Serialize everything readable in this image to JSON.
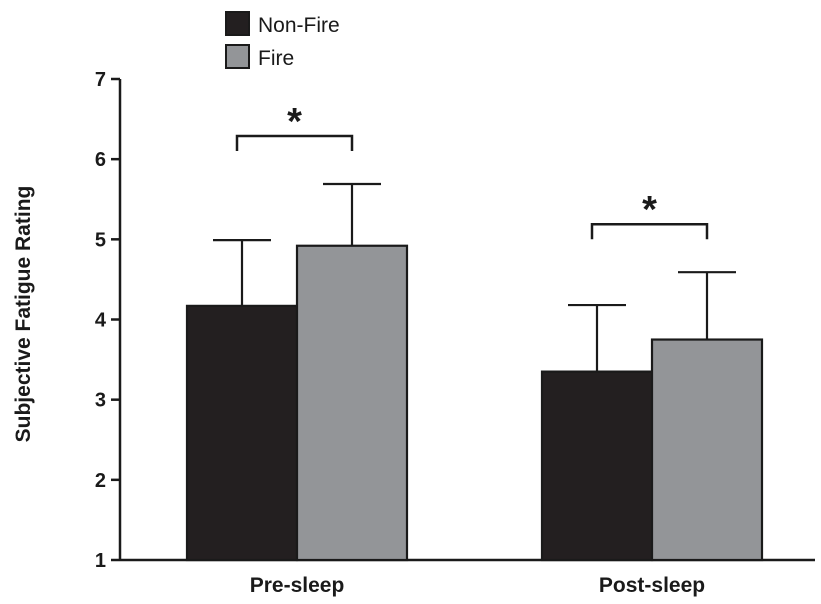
{
  "chart_data": {
    "type": "bar",
    "categories": [
      "Pre-sleep",
      "Post-sleep"
    ],
    "series": [
      {
        "name": "Non-Fire",
        "values": [
          4.17,
          3.35
        ],
        "error": [
          0.82,
          0.83
        ],
        "color": "#231f20"
      },
      {
        "name": "Fire",
        "values": [
          4.92,
          3.75
        ],
        "error": [
          0.77,
          0.84
        ],
        "color": "#939598"
      }
    ],
    "ylabel": "Subjective Fatigue Rating",
    "xlabel": "",
    "ylim": [
      1,
      7
    ],
    "yticks": [
      1,
      2,
      3,
      4,
      5,
      6,
      7
    ],
    "grid": false,
    "legend_position": "top-left",
    "annotations": [
      {
        "category": "Pre-sleep",
        "text": "*"
      },
      {
        "category": "Post-sleep",
        "text": "*"
      }
    ]
  }
}
